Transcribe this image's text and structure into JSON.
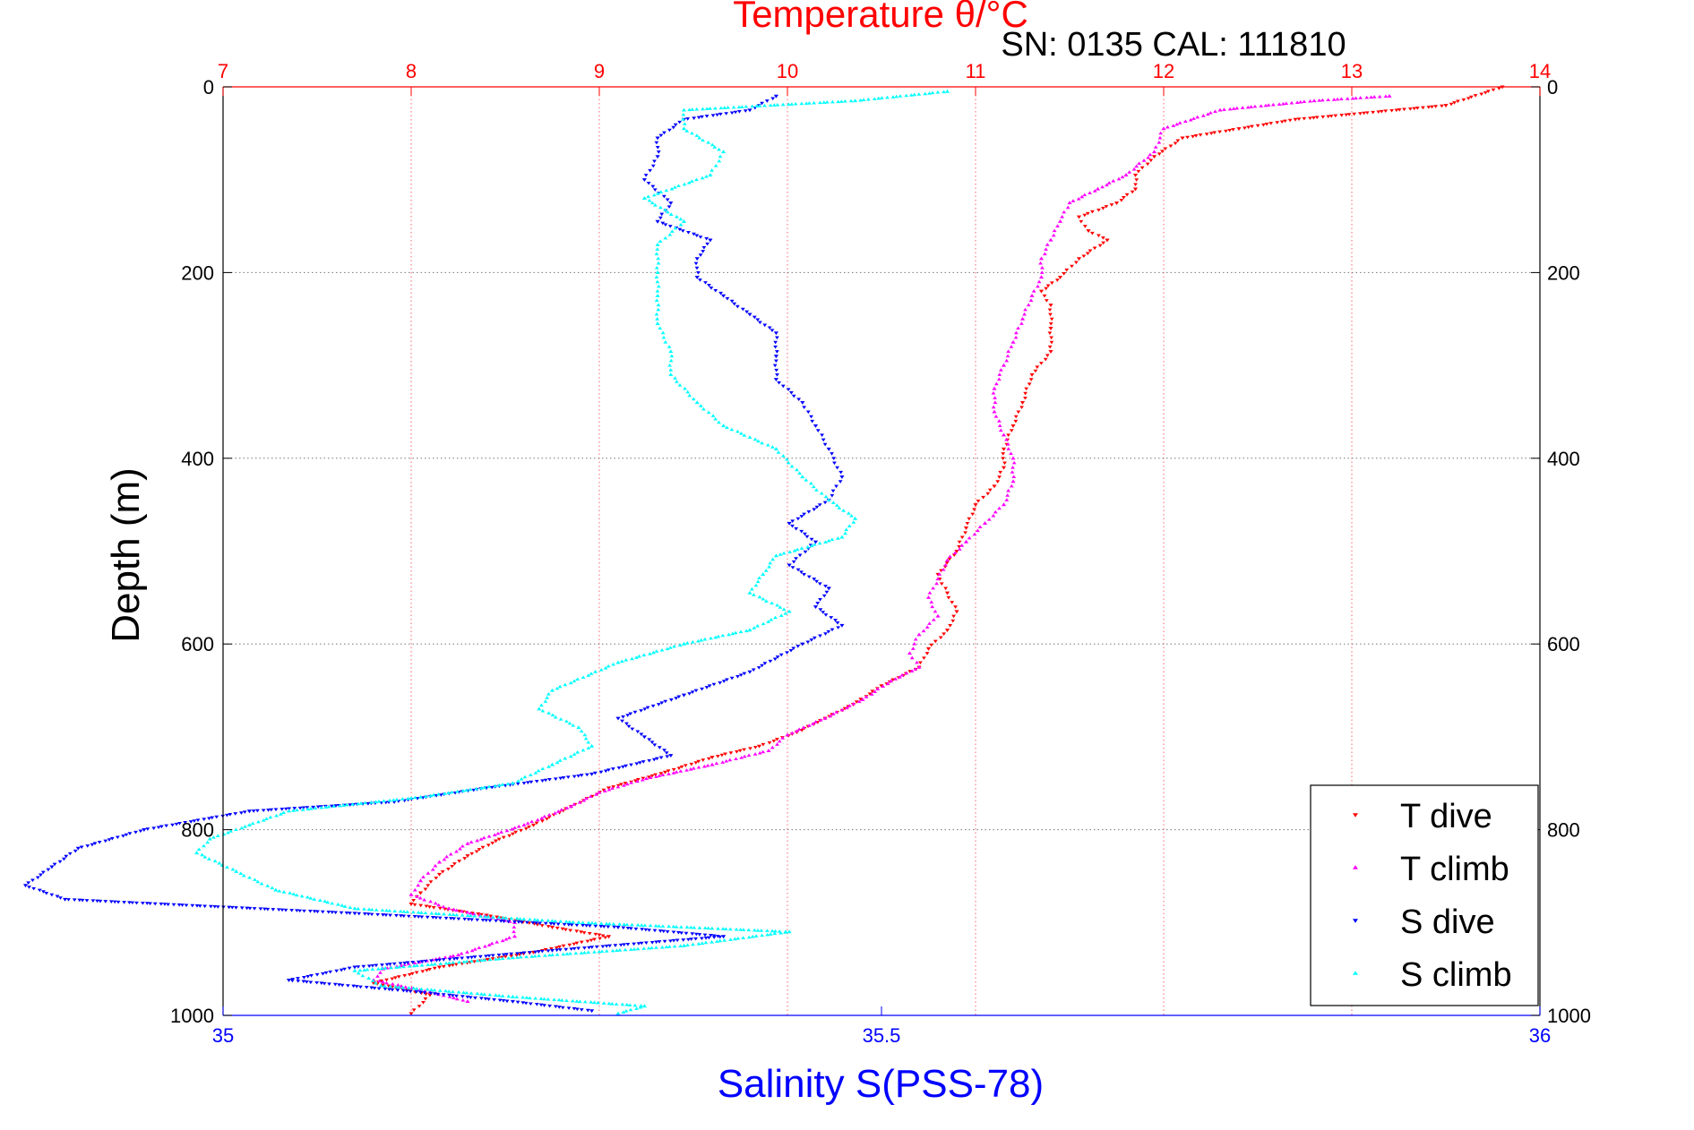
{
  "chart_data": {
    "type": "scatter",
    "title": "Temperature θ/°C",
    "subtitle": "SN: 0135  CAL: 111810",
    "xlabel": "Salinity S(PSS-78)",
    "ylabel": "Depth (m)",
    "temperature_axis": {
      "range": [
        7,
        14
      ],
      "ticks": [
        7,
        8,
        9,
        10,
        11,
        12,
        13,
        14
      ],
      "tick_labels": [
        "7",
        "8",
        "9",
        "10",
        "11",
        "12",
        "13",
        "14"
      ],
      "color": "#ff0000",
      "position": "top"
    },
    "salinity_axis": {
      "range": [
        35,
        36
      ],
      "ticks": [
        35,
        35.5,
        36
      ],
      "tick_labels": [
        "35",
        "35.5",
        "36"
      ],
      "color": "#0000ff",
      "position": "bottom"
    },
    "depth_axis": {
      "range": [
        0,
        1000
      ],
      "reversed": true,
      "ticks": [
        0,
        200,
        400,
        600,
        800,
        1000
      ],
      "tick_labels": [
        "0",
        "200",
        "400",
        "600",
        "800",
        "1000"
      ]
    },
    "grid": true,
    "legend_position": "bottom-right",
    "series": [
      {
        "name": "T dive",
        "axis": "temperature",
        "color": "#ff0000",
        "marker": "triangle-down",
        "points": [
          [
            13.8,
            0
          ],
          [
            13.5,
            20
          ],
          [
            12.7,
            35
          ],
          [
            12.4,
            45
          ],
          [
            12.1,
            55
          ],
          [
            11.95,
            75
          ],
          [
            11.85,
            95
          ],
          [
            11.85,
            110
          ],
          [
            11.75,
            125
          ],
          [
            11.55,
            140
          ],
          [
            11.6,
            155
          ],
          [
            11.7,
            165
          ],
          [
            11.55,
            185
          ],
          [
            11.45,
            205
          ],
          [
            11.35,
            220
          ],
          [
            11.4,
            235
          ],
          [
            11.4,
            260
          ],
          [
            11.4,
            285
          ],
          [
            11.3,
            310
          ],
          [
            11.25,
            340
          ],
          [
            11.2,
            365
          ],
          [
            11.15,
            390
          ],
          [
            11.15,
            410
          ],
          [
            11.1,
            430
          ],
          [
            11.0,
            450
          ],
          [
            10.95,
            475
          ],
          [
            10.9,
            500
          ],
          [
            10.8,
            525
          ],
          [
            10.85,
            545
          ],
          [
            10.9,
            565
          ],
          [
            10.85,
            585
          ],
          [
            10.75,
            605
          ],
          [
            10.7,
            625
          ],
          [
            10.5,
            645
          ],
          [
            10.35,
            665
          ],
          [
            10.2,
            680
          ],
          [
            10.05,
            695
          ],
          [
            9.85,
            710
          ],
          [
            9.6,
            722
          ],
          [
            9.35,
            738
          ],
          [
            9.05,
            755
          ],
          [
            8.85,
            775
          ],
          [
            8.65,
            795
          ],
          [
            8.45,
            812
          ],
          [
            8.3,
            828
          ],
          [
            8.15,
            848
          ],
          [
            8.05,
            868
          ],
          [
            8.0,
            880
          ],
          [
            8.4,
            892
          ],
          [
            8.75,
            905
          ],
          [
            9.05,
            915
          ],
          [
            8.65,
            932
          ],
          [
            8.15,
            948
          ],
          [
            7.8,
            965
          ],
          [
            8.1,
            978
          ],
          [
            8.0,
            998
          ]
        ]
      },
      {
        "name": "T climb",
        "axis": "temperature",
        "color": "#ff00ff",
        "marker": "triangle-up",
        "points": [
          [
            13.2,
            10
          ],
          [
            12.8,
            15
          ],
          [
            12.3,
            25
          ],
          [
            12.0,
            45
          ],
          [
            11.95,
            70
          ],
          [
            11.8,
            95
          ],
          [
            11.65,
            110
          ],
          [
            11.5,
            125
          ],
          [
            11.45,
            145
          ],
          [
            11.4,
            165
          ],
          [
            11.35,
            185
          ],
          [
            11.35,
            205
          ],
          [
            11.3,
            225
          ],
          [
            11.25,
            250
          ],
          [
            11.2,
            275
          ],
          [
            11.15,
            300
          ],
          [
            11.1,
            325
          ],
          [
            11.1,
            350
          ],
          [
            11.15,
            375
          ],
          [
            11.2,
            400
          ],
          [
            11.2,
            425
          ],
          [
            11.15,
            450
          ],
          [
            11.05,
            470
          ],
          [
            10.95,
            490
          ],
          [
            10.85,
            510
          ],
          [
            10.8,
            530
          ],
          [
            10.75,
            550
          ],
          [
            10.8,
            570
          ],
          [
            10.7,
            590
          ],
          [
            10.65,
            610
          ],
          [
            10.7,
            625
          ],
          [
            10.55,
            640
          ],
          [
            10.4,
            660
          ],
          [
            10.2,
            680
          ],
          [
            10.0,
            698
          ],
          [
            9.9,
            715
          ],
          [
            9.6,
            730
          ],
          [
            9.25,
            745
          ],
          [
            9.0,
            760
          ],
          [
            8.85,
            775
          ],
          [
            8.6,
            795
          ],
          [
            8.3,
            815
          ],
          [
            8.15,
            835
          ],
          [
            8.05,
            855
          ],
          [
            8.0,
            870
          ],
          [
            8.2,
            885
          ],
          [
            8.55,
            900
          ],
          [
            8.55,
            915
          ],
          [
            8.25,
            935
          ],
          [
            7.85,
            950
          ],
          [
            7.8,
            962
          ],
          [
            8.1,
            975
          ],
          [
            8.3,
            985
          ]
        ]
      },
      {
        "name": "S dive",
        "axis": "salinity",
        "color": "#0000ff",
        "marker": "triangle-down",
        "points": [
          [
            35.42,
            10
          ],
          [
            35.4,
            25
          ],
          [
            35.35,
            35
          ],
          [
            35.33,
            55
          ],
          [
            35.33,
            75
          ],
          [
            35.32,
            100
          ],
          [
            35.34,
            125
          ],
          [
            35.33,
            145
          ],
          [
            35.37,
            165
          ],
          [
            35.36,
            185
          ],
          [
            35.36,
            205
          ],
          [
            35.38,
            225
          ],
          [
            35.4,
            245
          ],
          [
            35.42,
            265
          ],
          [
            35.42,
            290
          ],
          [
            35.42,
            315
          ],
          [
            35.44,
            340
          ],
          [
            35.45,
            365
          ],
          [
            35.46,
            390
          ],
          [
            35.47,
            420
          ],
          [
            35.46,
            445
          ],
          [
            35.43,
            470
          ],
          [
            35.45,
            490
          ],
          [
            35.43,
            515
          ],
          [
            35.46,
            540
          ],
          [
            35.45,
            560
          ],
          [
            35.47,
            580
          ],
          [
            35.44,
            600
          ],
          [
            35.4,
            630
          ],
          [
            35.35,
            655
          ],
          [
            35.3,
            680
          ],
          [
            35.32,
            700
          ],
          [
            35.34,
            720
          ],
          [
            35.28,
            740
          ],
          [
            35.2,
            755
          ],
          [
            35.13,
            770
          ],
          [
            35.02,
            780
          ],
          [
            34.94,
            800
          ],
          [
            34.89,
            820
          ],
          [
            34.87,
            840
          ],
          [
            34.85,
            860
          ],
          [
            34.88,
            875
          ],
          [
            35.1,
            890
          ],
          [
            35.3,
            905
          ],
          [
            35.38,
            915
          ],
          [
            35.25,
            930
          ],
          [
            35.1,
            948
          ],
          [
            35.05,
            962
          ],
          [
            35.15,
            975
          ],
          [
            35.22,
            985
          ],
          [
            35.28,
            995
          ]
        ]
      },
      {
        "name": "S climb",
        "axis": "salinity",
        "color": "#00ffff",
        "marker": "triangle-up",
        "points": [
          [
            35.55,
            5
          ],
          [
            35.48,
            15
          ],
          [
            35.35,
            25
          ],
          [
            35.35,
            45
          ],
          [
            35.38,
            70
          ],
          [
            35.37,
            95
          ],
          [
            35.32,
            120
          ],
          [
            35.35,
            145
          ],
          [
            35.33,
            170
          ],
          [
            35.33,
            200
          ],
          [
            35.33,
            225
          ],
          [
            35.33,
            255
          ],
          [
            35.34,
            285
          ],
          [
            35.34,
            310
          ],
          [
            35.36,
            340
          ],
          [
            35.38,
            365
          ],
          [
            35.42,
            390
          ],
          [
            35.44,
            420
          ],
          [
            35.46,
            445
          ],
          [
            35.48,
            465
          ],
          [
            35.47,
            485
          ],
          [
            35.42,
            505
          ],
          [
            35.41,
            525
          ],
          [
            35.4,
            545
          ],
          [
            35.43,
            565
          ],
          [
            35.4,
            585
          ],
          [
            35.35,
            600
          ],
          [
            35.3,
            620
          ],
          [
            35.25,
            650
          ],
          [
            35.24,
            670
          ],
          [
            35.27,
            690
          ],
          [
            35.28,
            710
          ],
          [
            35.25,
            730
          ],
          [
            35.22,
            750
          ],
          [
            35.15,
            765
          ],
          [
            35.05,
            780
          ],
          [
            35.02,
            795
          ],
          [
            34.99,
            810
          ],
          [
            34.98,
            825
          ],
          [
            35.01,
            845
          ],
          [
            35.04,
            865
          ],
          [
            35.1,
            885
          ],
          [
            35.27,
            900
          ],
          [
            35.43,
            910
          ],
          [
            35.35,
            925
          ],
          [
            35.22,
            938
          ],
          [
            35.1,
            952
          ],
          [
            35.12,
            968
          ],
          [
            35.22,
            980
          ],
          [
            35.32,
            990
          ],
          [
            35.3,
            998
          ]
        ]
      }
    ]
  }
}
